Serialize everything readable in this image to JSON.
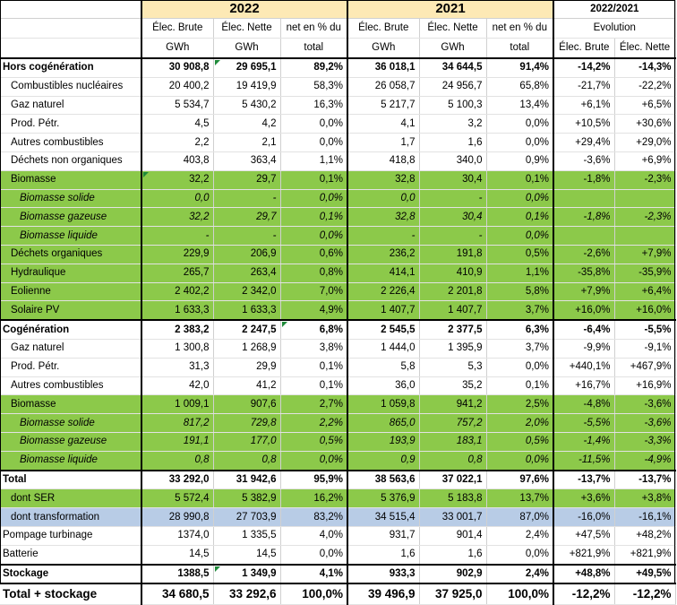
{
  "header": {
    "years": [
      "2022",
      "2021"
    ],
    "evolution_title": "2022/2021",
    "evolution_sub": "Evolution",
    "sub_top": [
      "Élec. Brute",
      "Élec. Nette",
      "net en % du"
    ],
    "sub_bottom": [
      "GWh",
      "GWh",
      "total"
    ],
    "evo_cols": [
      "Élec. Brute",
      "Élec. Nette"
    ]
  },
  "rows": [
    {
      "label": "Hors cogénération",
      "style": "bold sect",
      "indent": 0,
      "v": [
        "30 908,8",
        "29 695,1",
        "89,2%",
        "36 018,1",
        "34 644,5",
        "91,4%",
        "-14,2%",
        "-14,3%"
      ],
      "tri": [
        false,
        true,
        false,
        false,
        false,
        false,
        false,
        false
      ]
    },
    {
      "label": "Combustibles nucléaires",
      "style": "",
      "indent": 1,
      "v": [
        "20 400,2",
        "19 419,9",
        "58,3%",
        "26 058,7",
        "24 956,7",
        "65,8%",
        "-21,7%",
        "-22,2%"
      ]
    },
    {
      "label": "Gaz naturel",
      "style": "",
      "indent": 1,
      "v": [
        "5 534,7",
        "5 430,2",
        "16,3%",
        "5 217,7",
        "5 100,3",
        "13,4%",
        "+6,1%",
        "+6,5%"
      ]
    },
    {
      "label": "Prod. Pétr.",
      "style": "",
      "indent": 1,
      "v": [
        "4,5",
        "4,2",
        "0,0%",
        "4,1",
        "3,2",
        "0,0%",
        "+10,5%",
        "+30,6%"
      ]
    },
    {
      "label": "Autres combustibles",
      "style": "",
      "indent": 1,
      "v": [
        "2,2",
        "2,1",
        "0,0%",
        "1,7",
        "1,6",
        "0,0%",
        "+29,4%",
        "+29,0%"
      ]
    },
    {
      "label": "Déchets non organiques",
      "style": "",
      "indent": 1,
      "v": [
        "403,8",
        "363,4",
        "1,1%",
        "418,8",
        "340,0",
        "0,9%",
        "-3,6%",
        "+6,9%"
      ]
    },
    {
      "label": "Biomasse",
      "style": "green",
      "indent": 1,
      "v": [
        "32,2",
        "29,7",
        "0,1%",
        "32,8",
        "30,4",
        "0,1%",
        "-1,8%",
        "-2,3%"
      ],
      "tri": [
        true,
        false,
        false,
        false,
        false,
        false,
        false,
        false
      ]
    },
    {
      "label": "Biomasse solide",
      "style": "green italic",
      "indent": 2,
      "v": [
        "0,0",
        "-",
        "0,0%",
        "0,0",
        "-",
        "0,0%",
        "",
        ""
      ]
    },
    {
      "label": "Biomasse gazeuse",
      "style": "green italic",
      "indent": 2,
      "v": [
        "32,2",
        "29,7",
        "0,1%",
        "32,8",
        "30,4",
        "0,1%",
        "-1,8%",
        "-2,3%"
      ]
    },
    {
      "label": "Biomasse liquide",
      "style": "green italic",
      "indent": 2,
      "v": [
        "-",
        "-",
        "0,0%",
        "-",
        "-",
        "0,0%",
        "",
        ""
      ]
    },
    {
      "label": "Déchets organiques",
      "style": "green",
      "indent": 1,
      "v": [
        "229,9",
        "206,9",
        "0,6%",
        "236,2",
        "191,8",
        "0,5%",
        "-2,6%",
        "+7,9%"
      ]
    },
    {
      "label": "Hydraulique",
      "style": "green",
      "indent": 1,
      "v": [
        "265,7",
        "263,4",
        "0,8%",
        "414,1",
        "410,9",
        "1,1%",
        "-35,8%",
        "-35,9%"
      ]
    },
    {
      "label": "Eolienne",
      "style": "green",
      "indent": 1,
      "v": [
        "2 402,2",
        "2 342,0",
        "7,0%",
        "2 226,4",
        "2 201,8",
        "5,8%",
        "+7,9%",
        "+6,4%"
      ]
    },
    {
      "label": "Solaire PV",
      "style": "green",
      "indent": 1,
      "v": [
        "1 633,3",
        "1 633,3",
        "4,9%",
        "1 407,7",
        "1 407,7",
        "3,7%",
        "+16,0%",
        "+16,0%"
      ]
    },
    {
      "label": "Cogénération",
      "style": "bold sect",
      "indent": 0,
      "v": [
        "2 383,2",
        "2 247,5",
        "6,8%",
        "2 545,5",
        "2 377,5",
        "6,3%",
        "-6,4%",
        "-5,5%"
      ],
      "tri": [
        false,
        false,
        true,
        false,
        false,
        false,
        false,
        false
      ]
    },
    {
      "label": "Gaz naturel",
      "style": "",
      "indent": 1,
      "v": [
        "1 300,8",
        "1 268,9",
        "3,8%",
        "1 444,0",
        "1 395,9",
        "3,7%",
        "-9,9%",
        "-9,1%"
      ]
    },
    {
      "label": "Prod. Pétr.",
      "style": "",
      "indent": 1,
      "v": [
        "31,3",
        "29,9",
        "0,1%",
        "5,8",
        "5,3",
        "0,0%",
        "+440,1%",
        "+467,9%"
      ]
    },
    {
      "label": "Autres combustibles",
      "style": "",
      "indent": 1,
      "v": [
        "42,0",
        "41,2",
        "0,1%",
        "36,0",
        "35,2",
        "0,1%",
        "+16,7%",
        "+16,9%"
      ]
    },
    {
      "label": "Biomasse",
      "style": "green",
      "indent": 1,
      "v": [
        "1 009,1",
        "907,6",
        "2,7%",
        "1 059,8",
        "941,2",
        "2,5%",
        "-4,8%",
        "-3,6%"
      ]
    },
    {
      "label": "Biomasse solide",
      "style": "green italic",
      "indent": 2,
      "v": [
        "817,2",
        "729,8",
        "2,2%",
        "865,0",
        "757,2",
        "2,0%",
        "-5,5%",
        "-3,6%"
      ]
    },
    {
      "label": "Biomasse gazeuse",
      "style": "green italic",
      "indent": 2,
      "v": [
        "191,1",
        "177,0",
        "0,5%",
        "193,9",
        "183,1",
        "0,5%",
        "-1,4%",
        "-3,3%"
      ]
    },
    {
      "label": "Biomasse liquide",
      "style": "green italic",
      "indent": 2,
      "v": [
        "0,8",
        "0,8",
        "0,0%",
        "0,9",
        "0,8",
        "0,0%",
        "-11,5%",
        "-4,9%"
      ]
    },
    {
      "label": "Total",
      "style": "bold sect",
      "indent": 0,
      "v": [
        "33 292,0",
        "31 942,6",
        "95,9%",
        "38 563,6",
        "37 022,1",
        "97,6%",
        "-13,7%",
        "-13,7%"
      ]
    },
    {
      "label": "dont SER",
      "style": "green",
      "indent": 1,
      "v": [
        "5 572,4",
        "5 382,9",
        "16,2%",
        "5 376,9",
        "5 183,8",
        "13,7%",
        "+3,6%",
        "+3,8%"
      ]
    },
    {
      "label": "dont transformation",
      "style": "blue",
      "indent": 1,
      "v": [
        "28 990,8",
        "27 703,9",
        "83,2%",
        "34 515,4",
        "33 001,7",
        "87,0%",
        "-16,0%",
        "-16,1%"
      ]
    },
    {
      "label": "Pompage turbinage",
      "style": "",
      "indent": 0,
      "v": [
        "1374,0",
        "1 335,5",
        "4,0%",
        "931,7",
        "901,4",
        "2,4%",
        "+47,5%",
        "+48,2%"
      ]
    },
    {
      "label": "Batterie",
      "style": "",
      "indent": 0,
      "v": [
        "14,5",
        "14,5",
        "0,0%",
        "1,6",
        "1,6",
        "0,0%",
        "+821,9%",
        "+821,9%"
      ]
    },
    {
      "label": "Stockage",
      "style": "bold sect",
      "indent": 0,
      "v": [
        "1388,5",
        "1 349,9",
        "4,1%",
        "933,3",
        "902,9",
        "2,4%",
        "+48,8%",
        "+49,5%"
      ],
      "tri": [
        false,
        true,
        false,
        false,
        false,
        false,
        false,
        false
      ]
    },
    {
      "label": "Total + stockage",
      "style": "grand",
      "indent": 0,
      "v": [
        "34 680,5",
        "33 292,6",
        "100,0%",
        "39 496,9",
        "37 925,0",
        "100,0%",
        "-12,2%",
        "-12,2%"
      ]
    }
  ]
}
